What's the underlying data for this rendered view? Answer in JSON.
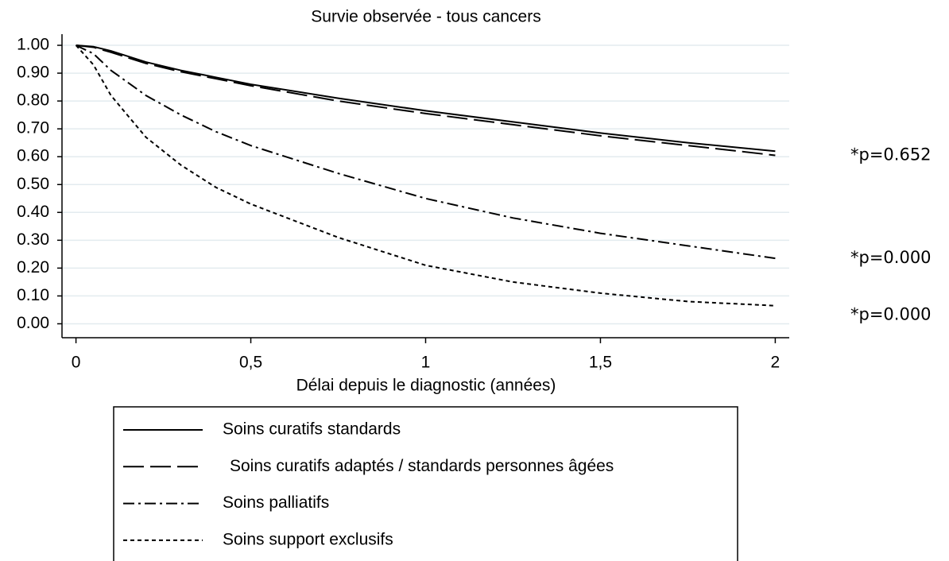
{
  "chart_data": {
    "type": "line",
    "title": "Survie observée - tous cancers",
    "x_label": "Délai depuis le diagnostic (années)",
    "x": [
      0,
      0.05,
      0.1,
      0.2,
      0.3,
      0.4,
      0.5,
      0.75,
      1,
      1.25,
      1.5,
      1.75,
      2
    ],
    "series": [
      {
        "name": "Soins curatifs standards",
        "color": "#000000",
        "dash": "solid",
        "values": [
          1,
          0.995,
          0.98,
          0.94,
          0.91,
          0.885,
          0.86,
          0.81,
          0.765,
          0.725,
          0.685,
          0.65,
          0.62
        ]
      },
      {
        "name": "Soins curatifs adaptés / standards personnes âgées",
        "color": "#000000",
        "dash": "longdash",
        "values": [
          1,
          0.993,
          0.975,
          0.935,
          0.905,
          0.88,
          0.855,
          0.8,
          0.755,
          0.715,
          0.675,
          0.64,
          0.605
        ],
        "annotation": "*p=0.652"
      },
      {
        "name": "Soins palliatifs",
        "color": "#000000",
        "dash": "dashdot",
        "values": [
          1,
          0.97,
          0.91,
          0.82,
          0.75,
          0.69,
          0.64,
          0.54,
          0.45,
          0.38,
          0.325,
          0.28,
          0.235
        ],
        "annotation": "*p=0.000"
      },
      {
        "name": "Soins support exclusifs",
        "color": "#000000",
        "dash": "dot",
        "values": [
          1,
          0.93,
          0.82,
          0.67,
          0.57,
          0.49,
          0.43,
          0.31,
          0.21,
          0.15,
          0.11,
          0.08,
          0.065
        ],
        "annotation": "*p=0.000"
      }
    ],
    "xlim": [
      -0.04,
      2.04
    ],
    "ylim": [
      -0.05,
      1.04
    ],
    "xticks": [
      0,
      {
        "value": 0.5,
        "label": "0,5"
      },
      1,
      {
        "value": 1.5,
        "label": "1,5"
      },
      2
    ],
    "yticks": [
      {
        "value": 0,
        "label": "0.00"
      },
      {
        "value": 0.1,
        "label": "0.10"
      },
      {
        "value": 0.2,
        "label": "0.20"
      },
      {
        "value": 0.3,
        "label": "0.30"
      },
      {
        "value": 0.4,
        "label": "0.40"
      },
      {
        "value": 0.5,
        "label": "0.50"
      },
      {
        "value": 0.6,
        "label": "0.60"
      },
      {
        "value": 0.7,
        "label": "0.70"
      },
      {
        "value": 0.8,
        "label": "0.80"
      },
      {
        "value": 0.9,
        "label": "0.90"
      },
      {
        "value": 1,
        "label": "1.00"
      }
    ],
    "grid": true,
    "legend": "bottom"
  }
}
